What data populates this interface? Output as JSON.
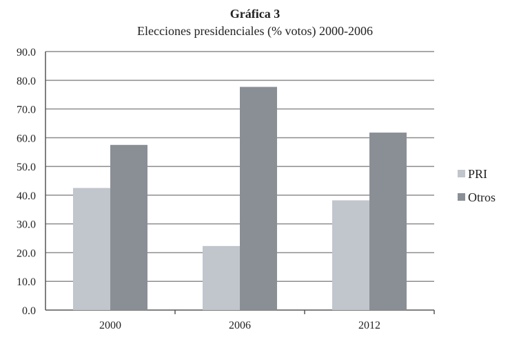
{
  "chart_data": {
    "type": "bar",
    "title": "Gráfica 3",
    "subtitle": "Elecciones presidenciales (% votos) 2000-2006",
    "categories": [
      "2000",
      "2006",
      "2012"
    ],
    "series": [
      {
        "name": "PRI",
        "values": [
          42.5,
          22.3,
          38.2
        ],
        "color": "#c1c5cc"
      },
      {
        "name": "Otros",
        "values": [
          57.5,
          77.7,
          61.8
        ],
        "color": "#8a8f96"
      }
    ],
    "ylim": [
      0,
      90
    ],
    "yticks": [
      "0.0",
      "10.0",
      "20.0",
      "30.0",
      "40.0",
      "50.0",
      "60.0",
      "70.0",
      "80.0",
      "90.0"
    ],
    "xlabel": "",
    "ylabel": "",
    "grid": true,
    "legend_position": "right"
  }
}
